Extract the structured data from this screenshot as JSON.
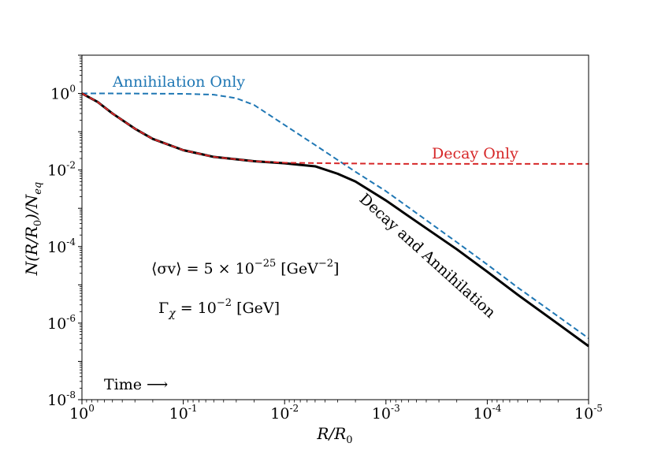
{
  "chart_data": {
    "type": "line",
    "xscale": "log",
    "yscale": "log",
    "x_direction": "decreasing",
    "xlim": [
      1,
      1e-05
    ],
    "ylim": [
      1e-08,
      10
    ],
    "xlabel": "R/R",
    "xlabel_sub": "0",
    "ylabel": "N(R/R",
    "ylabel_sub": "0",
    "ylabel_tail": ")/N",
    "ylabel_sub2": "eq",
    "x_ticks": [
      {
        "base": "10",
        "exp": "0",
        "value": 1
      },
      {
        "base": "10",
        "exp": "-1",
        "value": 0.1
      },
      {
        "base": "10",
        "exp": "-2",
        "value": 0.01
      },
      {
        "base": "10",
        "exp": "-3",
        "value": 0.001
      },
      {
        "base": "10",
        "exp": "-4",
        "value": 0.0001
      },
      {
        "base": "10",
        "exp": "-5",
        "value": 1e-05
      }
    ],
    "y_ticks": [
      {
        "base": "10",
        "exp": "0",
        "value": 1
      },
      {
        "base": "10",
        "exp": "-2",
        "value": 0.01
      },
      {
        "base": "10",
        "exp": "-4",
        "value": 0.0001
      },
      {
        "base": "10",
        "exp": "-6",
        "value": 1e-06
      },
      {
        "base": "10",
        "exp": "-8",
        "value": 1e-08
      }
    ],
    "series": [
      {
        "name": "Annihilation Only",
        "color": "#1f77b4",
        "style": "dashed",
        "points": [
          [
            1,
            1
          ],
          [
            0.5,
            1
          ],
          [
            0.2,
            0.99
          ],
          [
            0.1,
            0.98
          ],
          [
            0.05,
            0.93
          ],
          [
            0.03,
            0.75
          ],
          [
            0.02,
            0.5
          ],
          [
            0.01,
            0.15
          ],
          [
            0.005,
            0.045
          ],
          [
            0.002,
            0.009
          ],
          [
            0.001,
            0.0028
          ],
          [
            0.0005,
            0.00075
          ],
          [
            0.0002,
            0.00013
          ],
          [
            0.0001,
            3.4e-05
          ],
          [
            5e-05,
            8.5e-06
          ],
          [
            2e-05,
            1.5e-06
          ],
          [
            1e-05,
            4e-07
          ]
        ]
      },
      {
        "name": "Decay Only",
        "color": "#d62728",
        "style": "dashed",
        "points": [
          [
            1,
            1
          ],
          [
            0.7,
            0.6
          ],
          [
            0.5,
            0.3
          ],
          [
            0.3,
            0.12
          ],
          [
            0.2,
            0.065
          ],
          [
            0.1,
            0.033
          ],
          [
            0.05,
            0.022
          ],
          [
            0.02,
            0.017
          ],
          [
            0.01,
            0.0155
          ],
          [
            0.001,
            0.0145
          ],
          [
            0.0001,
            0.0145
          ],
          [
            1e-05,
            0.0145
          ]
        ]
      },
      {
        "name": "Decay and Annihilation",
        "color": "#000000",
        "style": "solid",
        "points": [
          [
            1,
            1
          ],
          [
            0.7,
            0.6
          ],
          [
            0.5,
            0.3
          ],
          [
            0.3,
            0.12
          ],
          [
            0.2,
            0.065
          ],
          [
            0.1,
            0.033
          ],
          [
            0.05,
            0.022
          ],
          [
            0.02,
            0.017
          ],
          [
            0.01,
            0.015
          ],
          [
            0.005,
            0.0125
          ],
          [
            0.003,
            0.008
          ],
          [
            0.002,
            0.005
          ],
          [
            0.001,
            0.0016
          ],
          [
            0.0005,
            0.00045
          ],
          [
            0.0002,
            8.5e-05
          ],
          [
            0.0001,
            2.2e-05
          ],
          [
            5e-05,
            5.5e-06
          ],
          [
            2e-05,
            9.5e-07
          ],
          [
            1e-05,
            2.5e-07
          ]
        ]
      }
    ],
    "annotations": {
      "annihilation_only": "Annihilation Only",
      "decay_only": "Decay Only",
      "decay_and_annihilation": "Decay and Annihilation",
      "sigma_v_lhs": "⟨σv⟩ = 5 × 10",
      "sigma_v_exp": "−25",
      "sigma_v_unit": " [GeV",
      "sigma_v_unit_exp": "−2",
      "sigma_v_unit_end": "]",
      "gamma_lhs": "Γ",
      "gamma_sub": "χ",
      "gamma_mid": " = 10",
      "gamma_exp": "−2",
      "gamma_unit": " [GeV]",
      "time_label": "Time ⟶"
    }
  }
}
